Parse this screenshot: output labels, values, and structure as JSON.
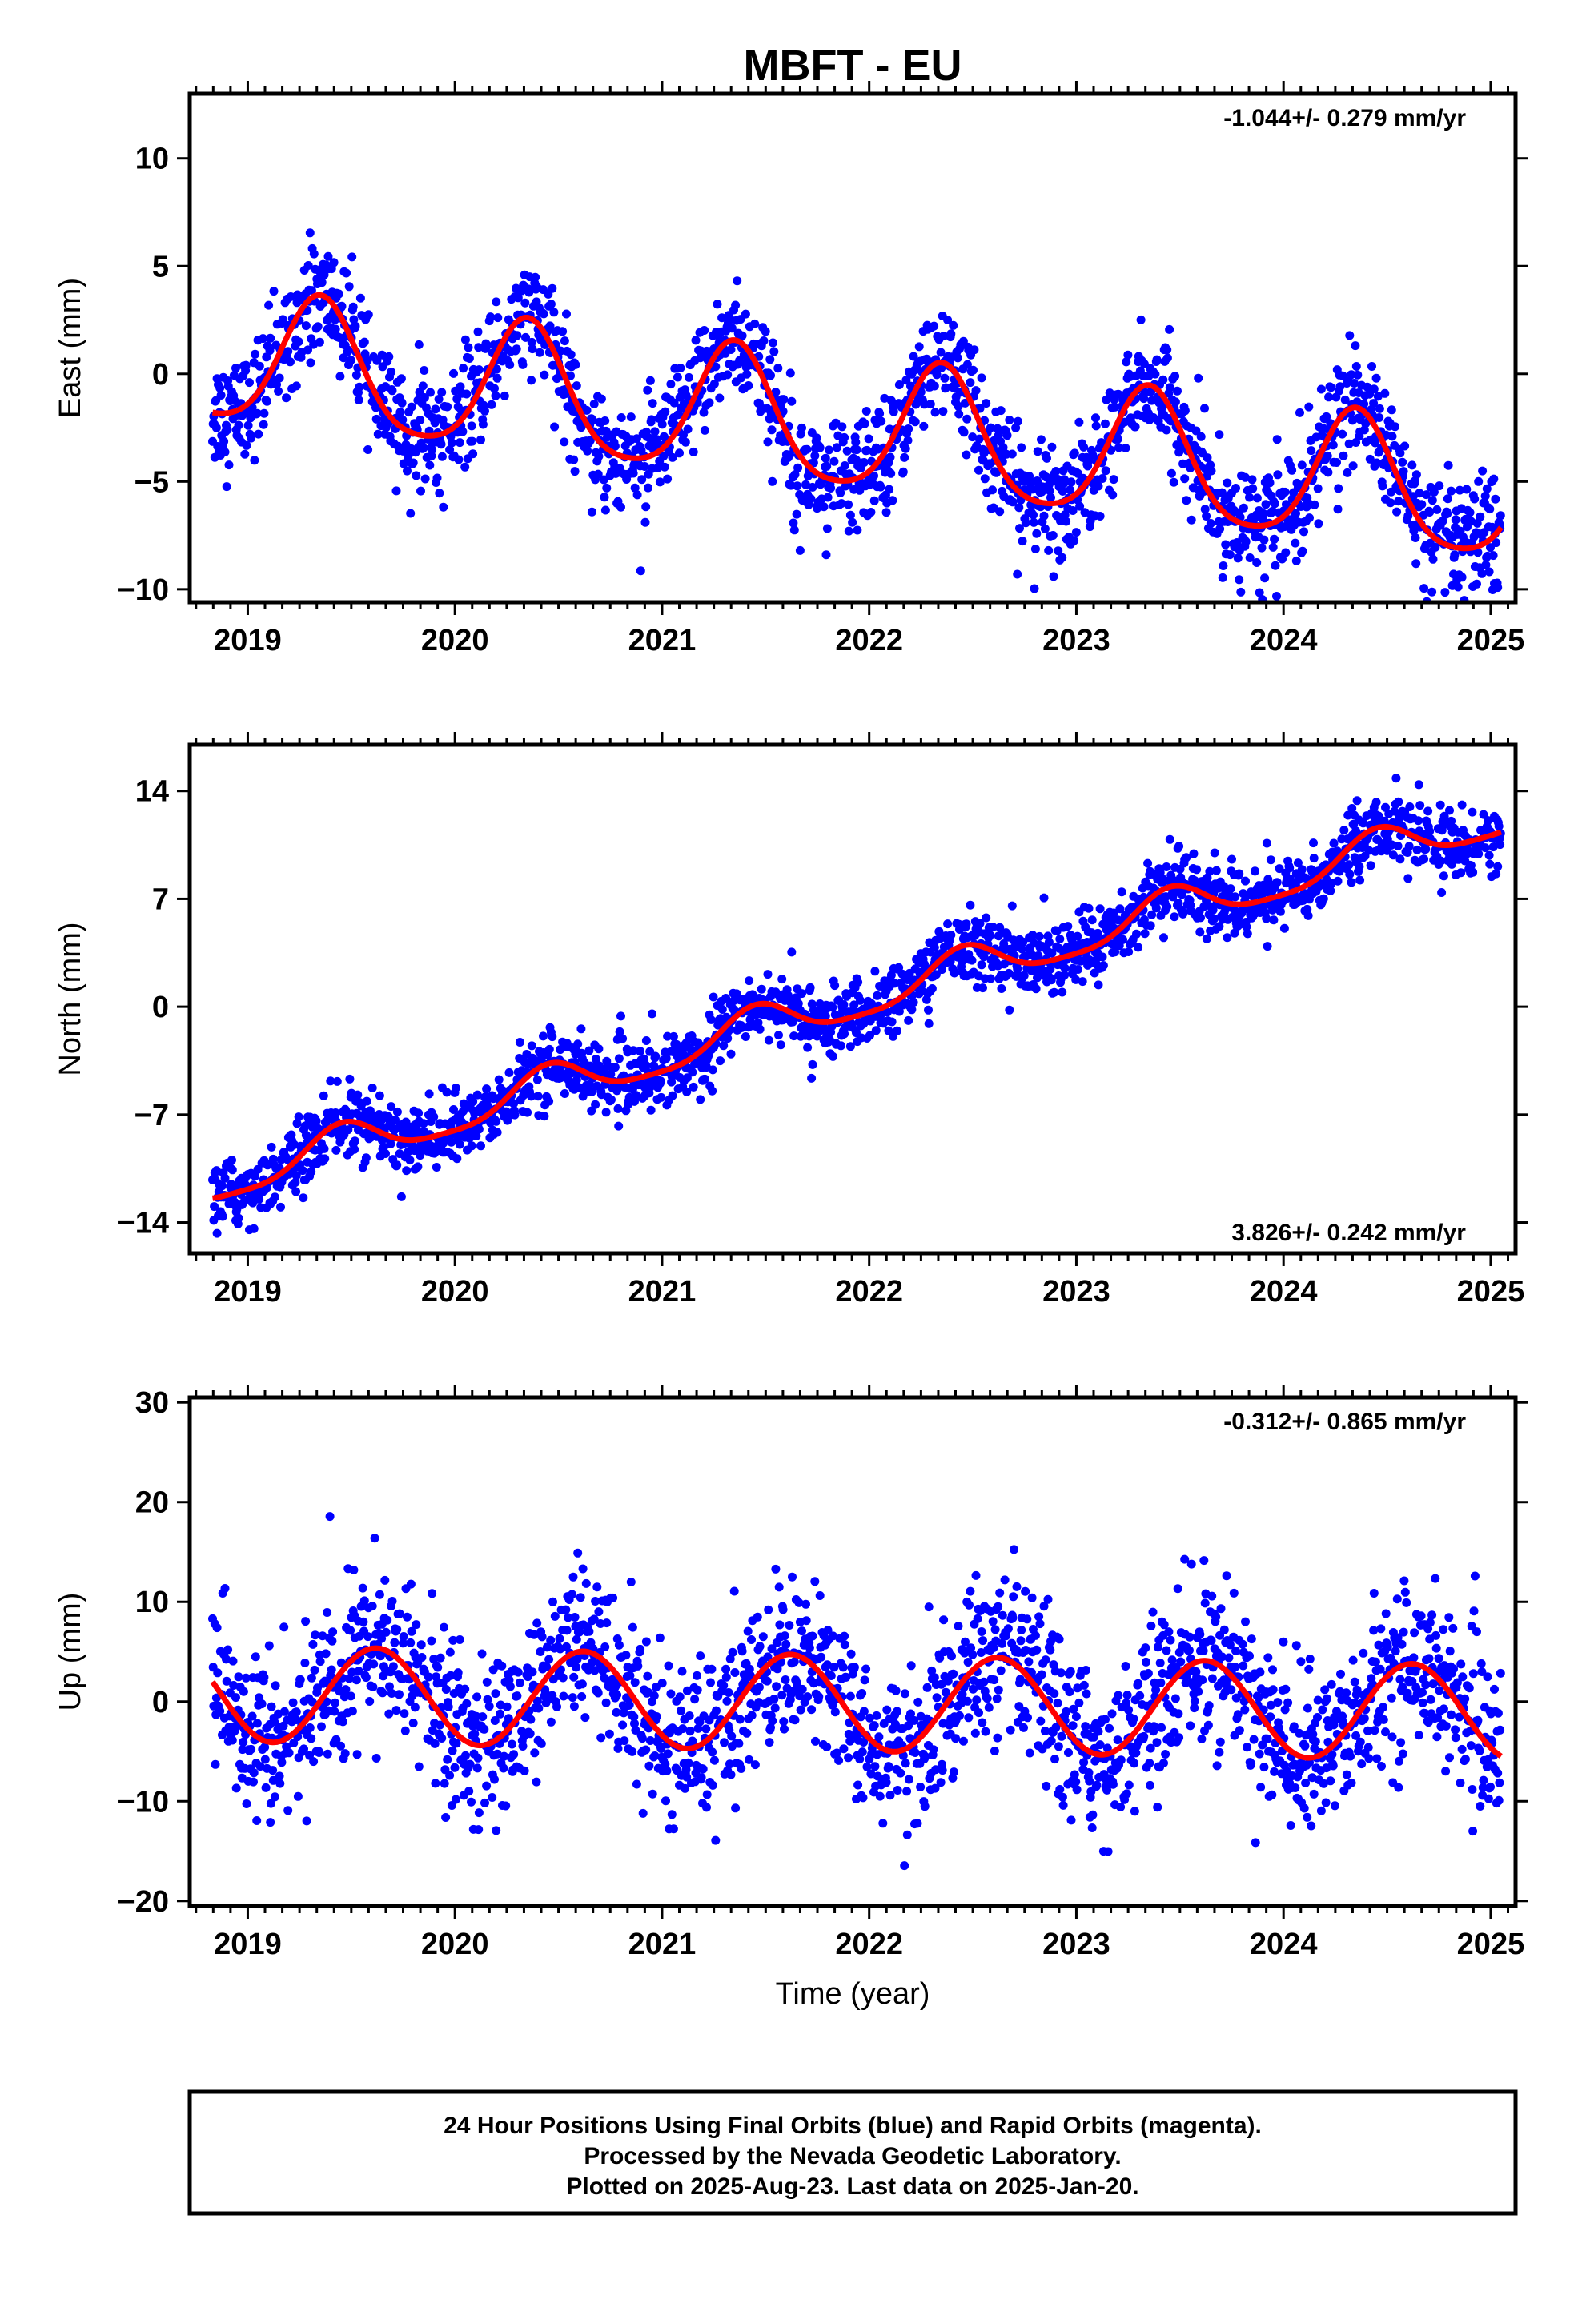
{
  "title": "MBFT - EU",
  "xlabel": "Time (year)",
  "colors": {
    "points": "#0000ff",
    "fit": "#ff0000",
    "axes": "#000000"
  },
  "footer": {
    "line1": "24 Hour Positions Using Final Orbits (blue) and Rapid Orbits (magenta).",
    "line2": "Processed by the Nevada Geodetic Laboratory.",
    "line3": "Plotted on 2025-Aug-23. Last data on 2025-Jan-20."
  },
  "chart_data": [
    {
      "type": "scatter",
      "name": "east",
      "ylabel": "East (mm)",
      "rate_label": "-1.044+/- 0.279 mm/yr",
      "rate_position": "top-right",
      "xlim": [
        2018.72,
        2025.12
      ],
      "ylim": [
        -10.6,
        13.0
      ],
      "xticks": [
        2019,
        2020,
        2021,
        2022,
        2023,
        2024,
        2025
      ],
      "yticks": [
        -10,
        -5,
        0,
        5,
        10
      ],
      "ytick_labels": [
        "−10",
        "−5",
        "0",
        "5",
        "10"
      ],
      "data_start": 2018.83,
      "data_end": 2025.05,
      "trend": {
        "value_at_start": 0.7,
        "rate_mm_per_yr": -1.044
      },
      "seasonal": {
        "amplitude": 3.0,
        "peak_phase": 0.35,
        "semiannual_amplitude": 0.5
      },
      "scatter_sd": 1.3
    },
    {
      "type": "scatter",
      "name": "north",
      "ylabel": "North (mm)",
      "rate_label": "3.826+/- 0.242 mm/yr",
      "rate_position": "bottom-right",
      "xlim": [
        2018.72,
        2025.12
      ],
      "ylim": [
        -16.0,
        17.0
      ],
      "xticks": [
        2019,
        2020,
        2021,
        2022,
        2023,
        2024,
        2025
      ],
      "yticks": [
        -14,
        -7,
        0,
        7,
        14
      ],
      "ytick_labels": [
        "−14",
        "−7",
        "0",
        "7",
        "14"
      ],
      "data_start": 2018.83,
      "data_end": 2025.05,
      "trend": {
        "value_at_start": -11.5,
        "rate_mm_per_yr": 3.826
      },
      "seasonal": {
        "amplitude": 1.3,
        "peak_phase": 0.45,
        "semiannual_amplitude": 0.3
      },
      "scatter_sd": 1.1
    },
    {
      "type": "scatter",
      "name": "up",
      "ylabel": "Up (mm)",
      "rate_label": "-0.312+/- 0.865 mm/yr",
      "rate_position": "top-right",
      "xlim": [
        2018.72,
        2025.12
      ],
      "ylim": [
        -20.5,
        30.5
      ],
      "xticks": [
        2019,
        2020,
        2021,
        2022,
        2023,
        2024,
        2025
      ],
      "yticks": [
        -20,
        -10,
        0,
        10,
        20,
        30
      ],
      "ytick_labels": [
        "−20",
        "−10",
        "0",
        "10",
        "20",
        "30"
      ],
      "data_start": 2018.83,
      "data_end": 2025.05,
      "trend": {
        "value_at_start": 0.8,
        "rate_mm_per_yr": -0.312
      },
      "seasonal": {
        "amplitude": 4.8,
        "peak_phase": 0.62,
        "semiannual_amplitude": 0.0
      },
      "scatter_sd": 4.0
    }
  ]
}
